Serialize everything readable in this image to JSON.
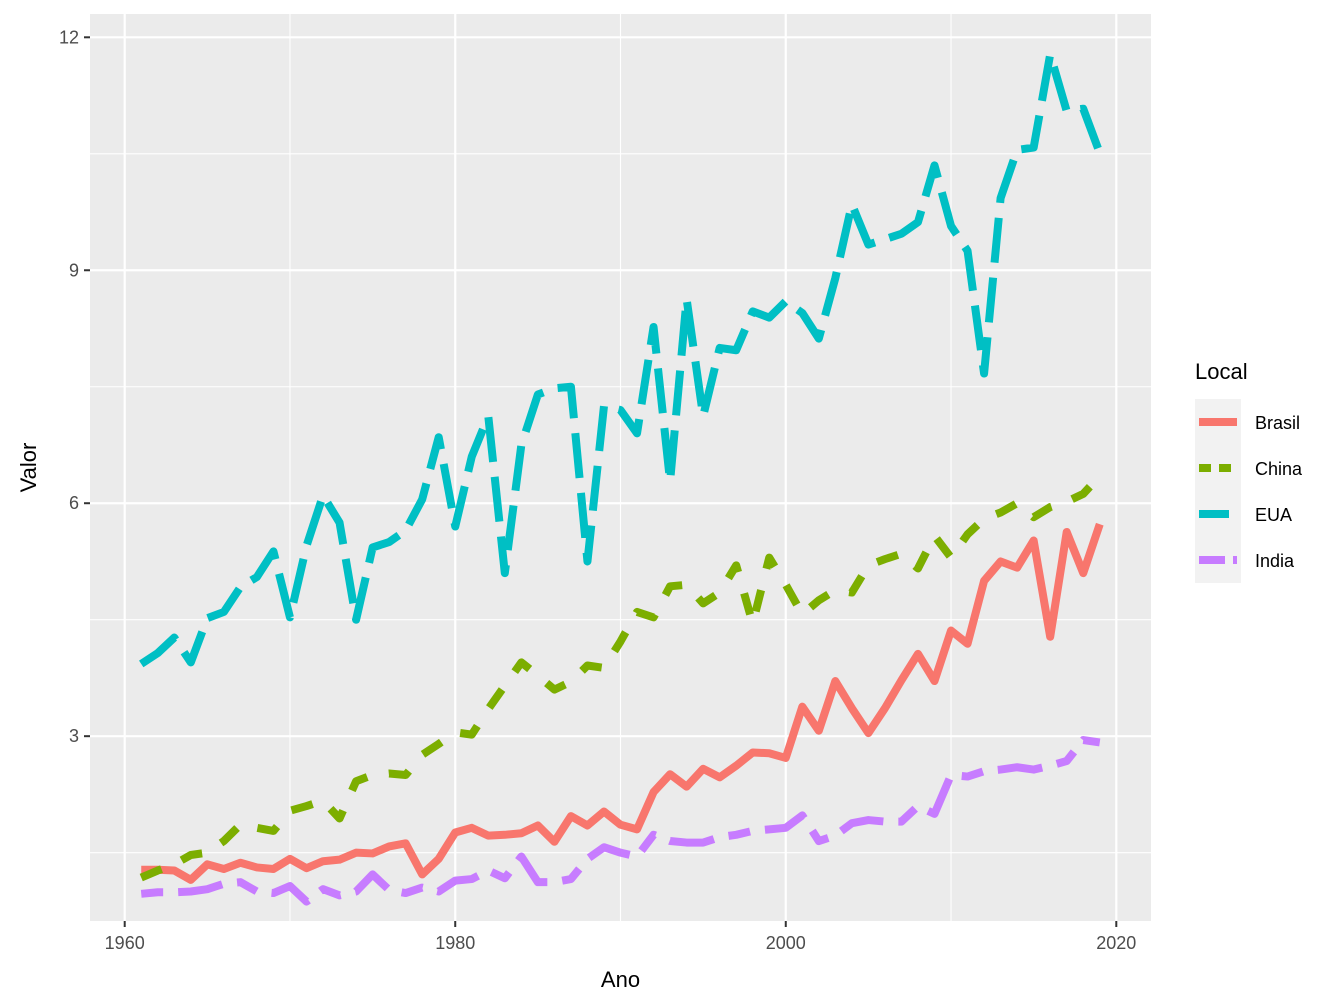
{
  "chart_data": {
    "type": "line",
    "title": "",
    "xlabel": "Ano",
    "ylabel": "Valor",
    "xlim": [
      1957.9,
      2022.1
    ],
    "ylim": [
      0.62,
      12.3
    ],
    "x_ticks": [
      1960,
      1980,
      2000,
      2020
    ],
    "y_ticks": [
      3,
      6,
      9,
      12
    ],
    "grid": true,
    "legend": {
      "title": "Local",
      "position": "right"
    },
    "x": [
      1961,
      1962,
      1963,
      1964,
      1965,
      1966,
      1967,
      1968,
      1969,
      1970,
      1971,
      1972,
      1973,
      1974,
      1975,
      1976,
      1977,
      1978,
      1979,
      1980,
      1981,
      1982,
      1983,
      1984,
      1985,
      1986,
      1987,
      1988,
      1989,
      1990,
      1991,
      1992,
      1993,
      1994,
      1995,
      1996,
      1997,
      1998,
      1999,
      2000,
      2001,
      2002,
      2003,
      2004,
      2005,
      2006,
      2007,
      2008,
      2009,
      2010,
      2011,
      2012,
      2013,
      2014,
      2015,
      2016,
      2017,
      2018,
      2019
    ],
    "series": [
      {
        "name": "Brasil",
        "color": "#F8766D",
        "linetype": "solid",
        "values": [
          1.28,
          1.28,
          1.27,
          1.15,
          1.35,
          1.29,
          1.37,
          1.31,
          1.29,
          1.42,
          1.3,
          1.39,
          1.41,
          1.5,
          1.49,
          1.58,
          1.62,
          1.22,
          1.42,
          1.76,
          1.82,
          1.72,
          1.73,
          1.75,
          1.85,
          1.64,
          1.97,
          1.85,
          2.03,
          1.86,
          1.8,
          2.28,
          2.51,
          2.35,
          2.58,
          2.47,
          2.62,
          2.79,
          2.78,
          2.72,
          3.38,
          3.07,
          3.71,
          3.36,
          3.04,
          3.36,
          3.72,
          4.06,
          3.71,
          4.36,
          4.19,
          5.0,
          5.25,
          5.17,
          5.52,
          4.28,
          5.63,
          5.1,
          5.73
        ]
      },
      {
        "name": "China",
        "color": "#7CAE00",
        "linetype": "dashed",
        "values": [
          1.18,
          1.27,
          1.35,
          1.47,
          1.5,
          1.65,
          1.86,
          1.82,
          1.78,
          2.04,
          2.1,
          2.17,
          1.94,
          2.42,
          2.5,
          2.52,
          2.5,
          2.76,
          2.9,
          3.05,
          3.02,
          3.35,
          3.65,
          3.95,
          3.78,
          3.6,
          3.7,
          3.91,
          3.88,
          4.22,
          4.6,
          4.53,
          4.93,
          4.95,
          4.71,
          4.85,
          5.2,
          4.45,
          5.3,
          4.95,
          4.57,
          4.75,
          4.88,
          4.85,
          5.2,
          5.28,
          5.35,
          5.16,
          5.58,
          5.3,
          5.6,
          5.8,
          5.88,
          6.0,
          5.82,
          5.95,
          6.02,
          6.12,
          6.35
        ]
      },
      {
        "name": "EUA",
        "color": "#00BFC4",
        "linetype": "longdash",
        "values": [
          3.93,
          4.07,
          4.27,
          3.95,
          4.52,
          4.6,
          4.92,
          5.05,
          5.38,
          4.53,
          5.45,
          6.1,
          5.75,
          4.5,
          5.43,
          5.5,
          5.65,
          6.05,
          6.85,
          5.7,
          6.6,
          7.12,
          5.1,
          6.75,
          7.4,
          7.48,
          7.5,
          5.25,
          7.25,
          7.2,
          6.9,
          8.27,
          6.28,
          8.63,
          7.12,
          8.0,
          7.97,
          8.47,
          8.39,
          8.6,
          8.45,
          8.12,
          8.9,
          9.85,
          9.33,
          9.4,
          9.47,
          9.62,
          10.35,
          9.57,
          9.25,
          7.67,
          9.93,
          10.55,
          10.58,
          11.78,
          11.05,
          11.08,
          10.51
        ]
      },
      {
        "name": "India",
        "color": "#C77CFF",
        "linetype": "twodash",
        "values": [
          0.97,
          0.99,
          0.99,
          1.0,
          1.03,
          1.1,
          1.12,
          1.0,
          0.98,
          1.07,
          0.87,
          1.03,
          0.95,
          1.0,
          1.22,
          1.02,
          0.98,
          1.05,
          1.0,
          1.14,
          1.16,
          1.27,
          1.17,
          1.45,
          1.12,
          1.12,
          1.16,
          1.42,
          1.57,
          1.5,
          1.45,
          1.73,
          1.65,
          1.63,
          1.63,
          1.7,
          1.73,
          1.78,
          1.8,
          1.82,
          1.98,
          1.65,
          1.72,
          1.88,
          1.92,
          1.9,
          1.9,
          2.1,
          2.0,
          2.5,
          2.48,
          2.55,
          2.57,
          2.6,
          2.57,
          2.62,
          2.68,
          2.95,
          2.92
        ]
      }
    ]
  }
}
